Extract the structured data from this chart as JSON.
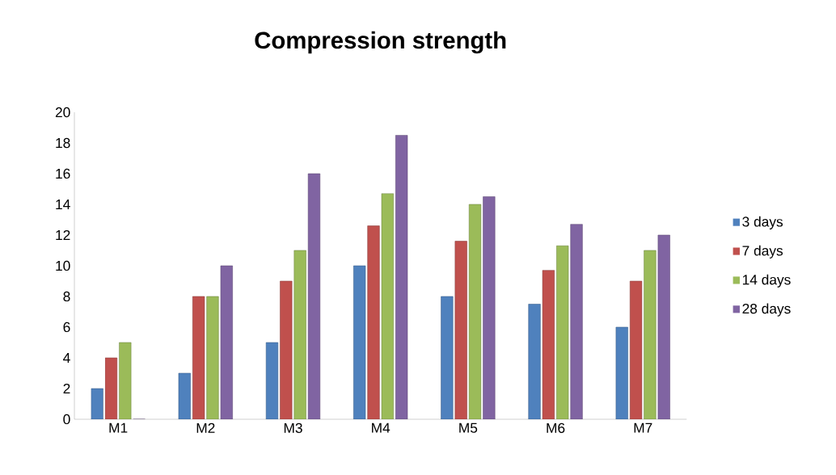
{
  "chart_data": {
    "type": "bar",
    "title": "Compression strength",
    "categories": [
      "M1",
      "M2",
      "M3",
      "M4",
      "M5",
      "M6",
      "M7"
    ],
    "series": [
      {
        "name": "3 days",
        "color": "#4f81bd",
        "values": [
          2,
          3,
          5,
          10,
          8,
          7.5,
          6
        ]
      },
      {
        "name": "7 days",
        "color": "#c0504d",
        "values": [
          4,
          8,
          9,
          12.6,
          11.6,
          9.7,
          9
        ]
      },
      {
        "name": "14 days",
        "color": "#9bbb59",
        "values": [
          5,
          8,
          11,
          14.7,
          14,
          11.3,
          11
        ]
      },
      {
        "name": "28 days",
        "color": "#8064a2",
        "values": [
          0,
          10,
          16,
          18.5,
          14.5,
          12.7,
          12
        ]
      }
    ],
    "ylim": [
      0,
      20
    ],
    "yticks": [
      0,
      2,
      4,
      6,
      8,
      10,
      12,
      14,
      16,
      18,
      20
    ],
    "grid": false,
    "legend": "right"
  }
}
